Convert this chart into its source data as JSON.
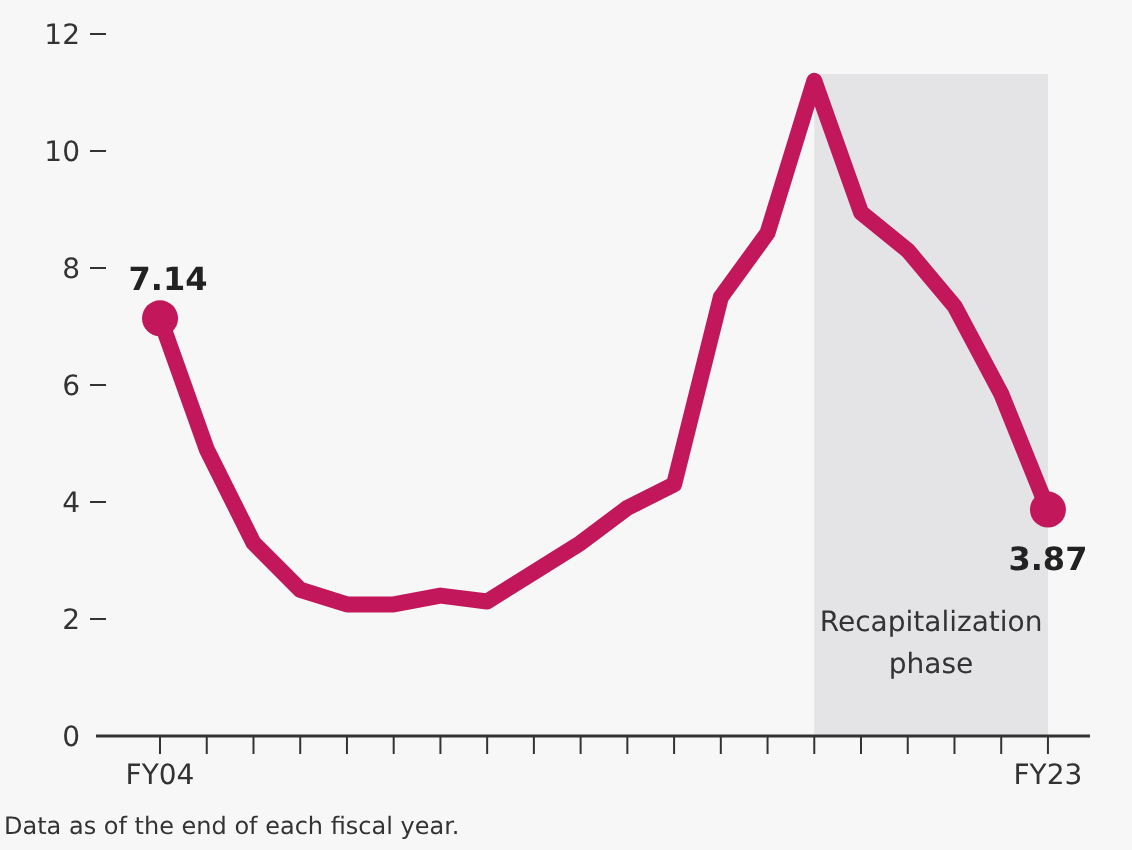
{
  "chart_data": {
    "type": "line",
    "categories": [
      "FY04",
      null,
      null,
      null,
      null,
      null,
      null,
      null,
      null,
      null,
      null,
      null,
      null,
      null,
      null,
      null,
      null,
      null,
      null,
      "FY23"
    ],
    "series": [
      {
        "color": "#c2185b",
        "values": [
          7.14,
          4.9,
          3.3,
          2.5,
          2.25,
          2.25,
          2.4,
          2.3,
          2.8,
          3.3,
          3.9,
          4.3,
          7.5,
          8.6,
          11.2,
          8.95,
          8.3,
          7.35,
          5.85,
          3.87
        ],
        "value_labels": [
          "7.14",
          null,
          null,
          null,
          null,
          null,
          null,
          null,
          null,
          null,
          null,
          null,
          null,
          null,
          null,
          null,
          null,
          null,
          null,
          "3.87"
        ]
      }
    ],
    "ylim": [
      0,
      12
    ],
    "yticks": [
      0,
      2,
      4,
      6,
      8,
      10,
      12
    ],
    "annotations": [
      "Recapitalization phase",
      "Data as of the end of each fiscal year."
    ],
    "grid": false
  }
}
